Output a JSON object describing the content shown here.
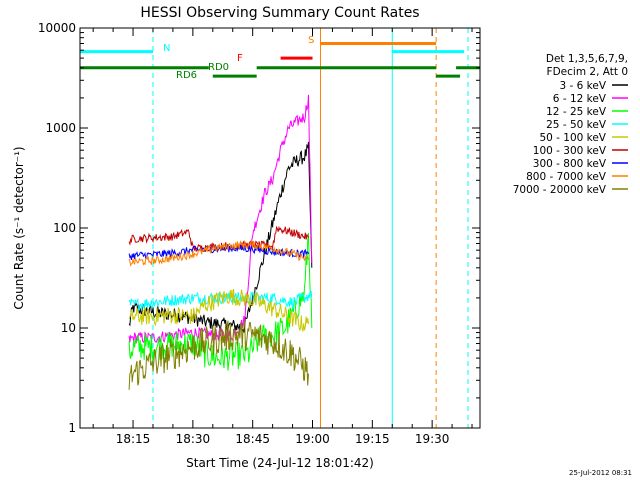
{
  "footer_timestamp": "25-Jul-2012 08:31",
  "chart_data": {
    "type": "line",
    "title": "HESSI Observing Summary Count Rates",
    "xlabel": "Start Time (24-Jul-12 18:01:42)",
    "ylabel": "Count Rate (s⁻¹ detector⁻¹)",
    "yscale": "log",
    "ylim": [
      1,
      10000
    ],
    "yticks": [
      1,
      10,
      100,
      1000,
      10000
    ],
    "ytick_labels": [
      "1",
      "10",
      "100",
      "1000",
      "10000"
    ],
    "xlim": [
      "18:01:42",
      "19:42:00"
    ],
    "xticks": [
      "18:15",
      "18:30",
      "18:45",
      "19:00",
      "19:15",
      "19:30"
    ],
    "grid": false,
    "legend_position": "right",
    "legend_header": [
      "Det 1,3,5,6,7,9,",
      "FDecim 2, Att 0"
    ],
    "colors": {
      "night": "#00ffff",
      "flare": "#ff0000",
      "saa": "#ff8000",
      "decimation": "#008000"
    },
    "state_labels": {
      "night": "N",
      "saa": "S",
      "flare": "F",
      "rd0": "RD0",
      "rd6": "RD6"
    },
    "state_bars": [
      {
        "kind": "night",
        "level": 5800,
        "segments": [
          [
            "18:01:42",
            "18:20"
          ],
          [
            "19:20",
            "19:38"
          ]
        ]
      },
      {
        "kind": "saa",
        "level": 7000,
        "segments": [
          [
            "19:02",
            "19:31"
          ]
        ]
      },
      {
        "kind": "flare",
        "level": 5000,
        "segments": [
          [
            "18:52",
            "19:00"
          ]
        ]
      },
      {
        "kind": "decimation",
        "level": 4000,
        "segments": [
          [
            "18:01:42",
            "18:34"
          ],
          [
            "18:46",
            "19:31"
          ],
          [
            "19:36",
            "19:42"
          ]
        ]
      },
      {
        "kind": "decimation",
        "level": 3300,
        "segments": [
          [
            "18:35",
            "18:46"
          ],
          [
            "19:31",
            "19:37"
          ]
        ]
      }
    ],
    "markers": [
      {
        "kind": "night",
        "time": "18:01:42",
        "style": "solid"
      },
      {
        "kind": "night",
        "time": "18:20",
        "style": "dashed"
      },
      {
        "kind": "saa",
        "time": "19:02",
        "style": "solid"
      },
      {
        "kind": "night",
        "time": "19:20",
        "style": "solid"
      },
      {
        "kind": "saa",
        "time": "19:31",
        "style": "dashed"
      },
      {
        "kind": "night",
        "time": "19:39",
        "style": "dashed"
      }
    ],
    "series": [
      {
        "name": "3 - 6 keV",
        "color": "#000000",
        "x": [
          "18:14",
          "18:15",
          "18:18",
          "18:22",
          "18:26",
          "18:30",
          "18:33",
          "18:36",
          "18:40",
          "18:43",
          "18:46",
          "18:48",
          "18:50",
          "18:52",
          "18:54",
          "18:56",
          "18:58",
          "18:59",
          "18:59:50"
        ],
        "y": [
          10.5,
          16,
          15,
          14,
          13.5,
          12.5,
          11.5,
          11,
          10.5,
          10.2,
          28,
          55,
          110,
          220,
          400,
          470,
          520,
          620,
          40
        ]
      },
      {
        "name": "6 - 12 keV",
        "color": "#ff00ff",
        "x": [
          "18:14",
          "18:15",
          "18:20",
          "18:25",
          "18:30",
          "18:35",
          "18:40",
          "18:43",
          "18:45",
          "18:48",
          "18:50",
          "18:52",
          "18:54",
          "18:56",
          "18:58",
          "18:59",
          "18:59:50"
        ],
        "y": [
          7.5,
          8,
          8,
          8.5,
          9,
          8.5,
          8.5,
          12,
          90,
          220,
          310,
          600,
          1000,
          1150,
          1300,
          2000,
          45
        ]
      },
      {
        "name": "12 - 25 keV",
        "color": "#00ff00",
        "x": [
          "18:14",
          "18:15",
          "18:20",
          "18:25",
          "18:30",
          "18:33",
          "18:36",
          "18:40",
          "18:44",
          "18:47",
          "18:50",
          "18:53",
          "18:56",
          "18:58",
          "18:59",
          "18:59:50"
        ],
        "y": [
          5.5,
          6.5,
          6.5,
          6.8,
          7,
          5.5,
          5,
          5.2,
          5.5,
          8,
          8.5,
          10,
          16,
          22,
          90,
          10
        ]
      },
      {
        "name": "25 - 50 keV",
        "color": "#00ffff",
        "x": [
          "18:14",
          "18:15",
          "18:20",
          "18:25",
          "18:30",
          "18:35",
          "18:40",
          "18:45",
          "18:50",
          "18:55",
          "18:59",
          "18:59:50"
        ],
        "y": [
          17.5,
          17,
          18,
          19,
          20,
          20,
          20,
          20,
          20,
          18,
          21,
          22
        ]
      },
      {
        "name": "50 - 100 keV",
        "color": "#c8c800",
        "x": [
          "18:14",
          "18:15",
          "18:20",
          "18:25",
          "18:30",
          "18:33",
          "18:36",
          "18:39",
          "18:42",
          "18:45",
          "18:48",
          "18:51",
          "18:54",
          "18:57",
          "18:59"
        ],
        "y": [
          12,
          13,
          13,
          13.5,
          13,
          17,
          19,
          21,
          20,
          19,
          17,
          15,
          13,
          11,
          11
        ]
      },
      {
        "name": "100 - 300 keV",
        "color": "#c00000",
        "x": [
          "18:14",
          "18:15",
          "18:20",
          "18:25",
          "18:29",
          "18:30",
          "18:35",
          "18:40",
          "18:45",
          "18:50",
          "18:51",
          "18:55",
          "18:59"
        ],
        "y": [
          75,
          78,
          80,
          82,
          92,
          62,
          65,
          66,
          68,
          66,
          100,
          90,
          80
        ]
      },
      {
        "name": "300 - 800 keV",
        "color": "#0000ff",
        "x": [
          "18:14",
          "18:15",
          "18:20",
          "18:25",
          "18:30",
          "18:35",
          "18:40",
          "18:45",
          "18:50",
          "18:55",
          "18:59"
        ],
        "y": [
          52,
          53,
          54,
          56,
          60,
          62,
          63,
          62,
          58,
          56,
          55
        ]
      },
      {
        "name": "800 - 7000 keV",
        "color": "#ff8000",
        "x": [
          "18:14",
          "18:15",
          "18:20",
          "18:25",
          "18:30",
          "18:35",
          "18:40",
          "18:45",
          "18:50",
          "18:55",
          "18:59"
        ],
        "y": [
          45,
          46,
          47,
          50,
          55,
          62,
          67,
          68,
          63,
          55,
          48
        ]
      },
      {
        "name": "7000 - 20000 keV",
        "color": "#808000",
        "x": [
          "18:14",
          "18:15",
          "18:20",
          "18:25",
          "18:30",
          "18:35",
          "18:40",
          "18:45",
          "18:50",
          "18:55",
          "18:58",
          "18:59"
        ],
        "y": [
          3,
          3.5,
          4.5,
          5.5,
          6.5,
          7.5,
          8.5,
          8.5,
          7.5,
          5.5,
          4,
          3.5
        ]
      }
    ]
  }
}
